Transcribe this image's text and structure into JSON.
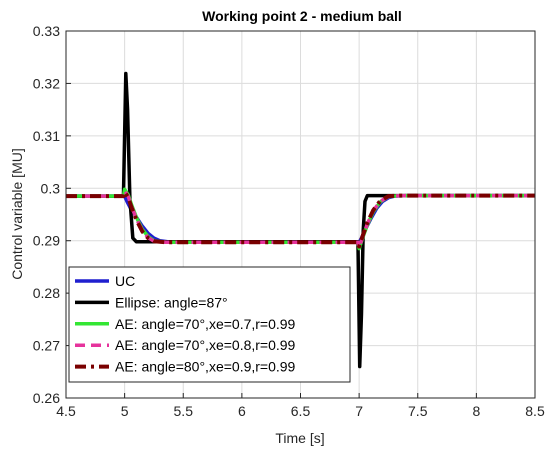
{
  "chart_data": {
    "type": "line",
    "title": "Working point 2 - medium ball",
    "xlabel": "Time [s]",
    "ylabel": "Control variable [MU]",
    "xlim": [
      4.5,
      8.5
    ],
    "ylim": [
      0.26,
      0.33
    ],
    "xticks": [
      4.5,
      5,
      5.5,
      6,
      6.5,
      7,
      7.5,
      8,
      8.5
    ],
    "xtick_labels": [
      "4.5",
      "5",
      "5.5",
      "6",
      "6.5",
      "7",
      "7.5",
      "8",
      "8.5"
    ],
    "yticks": [
      0.26,
      0.27,
      0.28,
      0.29,
      0.3,
      0.31,
      0.32,
      0.33
    ],
    "ytick_labels": [
      "0.26",
      "0.27",
      "0.28",
      "0.29",
      "0.3",
      "0.31",
      "0.32",
      "0.33"
    ],
    "grid": true,
    "legend_position": "bottom-left",
    "series": [
      {
        "name": "UC",
        "color": "#1f1fcf",
        "dash": "solid",
        "x": [
          4.5,
          5.0,
          5.02,
          5.05,
          5.1,
          5.15,
          5.2,
          5.25,
          5.3,
          5.4,
          5.6,
          7.0,
          7.02,
          7.05,
          7.1,
          7.15,
          7.2,
          7.25,
          7.3,
          7.4,
          8.5
        ],
        "y": [
          0.2985,
          0.2985,
          0.2975,
          0.2962,
          0.2945,
          0.2928,
          0.2914,
          0.2905,
          0.29,
          0.2897,
          0.2897,
          0.2897,
          0.2905,
          0.292,
          0.2942,
          0.2962,
          0.2975,
          0.2982,
          0.2985,
          0.2986,
          0.2986
        ]
      },
      {
        "name": "Ellipse: angle=87°",
        "color": "#000000",
        "dash": "solid",
        "x": [
          4.5,
          4.99,
          5.01,
          5.025,
          5.045,
          5.07,
          5.1,
          5.3,
          6.99,
          7.005,
          7.02,
          7.035,
          7.05,
          7.07,
          7.1,
          8.5
        ],
        "y": [
          0.2985,
          0.2985,
          0.3219,
          0.315,
          0.298,
          0.2905,
          0.2898,
          0.2898,
          0.2898,
          0.266,
          0.276,
          0.292,
          0.2975,
          0.2986,
          0.2986,
          0.2986
        ]
      },
      {
        "name": "AE: angle=70°,xe=0.7,r=0.99",
        "color": "#33e633",
        "dash": "solid",
        "x": [
          4.5,
          4.99,
          5.0,
          5.03,
          5.06,
          5.1,
          5.15,
          5.2,
          5.25,
          5.35,
          6.99,
          7.0,
          7.03,
          7.07,
          7.12,
          7.18,
          7.25,
          7.35,
          8.5
        ],
        "y": [
          0.2985,
          0.2985,
          0.2998,
          0.2988,
          0.2968,
          0.2945,
          0.2922,
          0.2908,
          0.29,
          0.2897,
          0.2897,
          0.2885,
          0.2905,
          0.293,
          0.2955,
          0.2974,
          0.2984,
          0.2986,
          0.2986
        ]
      },
      {
        "name": "AE: angle=70°,xe=0.8,r=0.99",
        "color": "#e6339c",
        "dash": "dashed",
        "x": [
          4.5,
          4.99,
          5.0,
          5.03,
          5.06,
          5.1,
          5.15,
          5.2,
          5.25,
          5.35,
          6.99,
          7.0,
          7.03,
          7.07,
          7.12,
          7.18,
          7.25,
          7.35,
          8.5
        ],
        "y": [
          0.2985,
          0.2985,
          0.2995,
          0.2985,
          0.2965,
          0.2942,
          0.292,
          0.2906,
          0.2899,
          0.2897,
          0.2897,
          0.2887,
          0.2907,
          0.2932,
          0.2957,
          0.2975,
          0.2984,
          0.2986,
          0.2986
        ]
      },
      {
        "name": "AE: angle=80°,xe=0.9,r=0.99",
        "color": "#7a0000",
        "dash": "dashdot",
        "x": [
          4.5,
          4.99,
          5.0,
          5.03,
          5.06,
          5.1,
          5.15,
          5.2,
          5.25,
          5.35,
          6.99,
          7.0,
          7.03,
          7.07,
          7.12,
          7.18,
          7.25,
          7.35,
          8.5
        ],
        "y": [
          0.2985,
          0.2985,
          0.2993,
          0.2983,
          0.2963,
          0.294,
          0.2918,
          0.2905,
          0.2899,
          0.2897,
          0.2897,
          0.2889,
          0.2909,
          0.2934,
          0.2958,
          0.2976,
          0.2985,
          0.2986,
          0.2986
        ]
      }
    ]
  }
}
